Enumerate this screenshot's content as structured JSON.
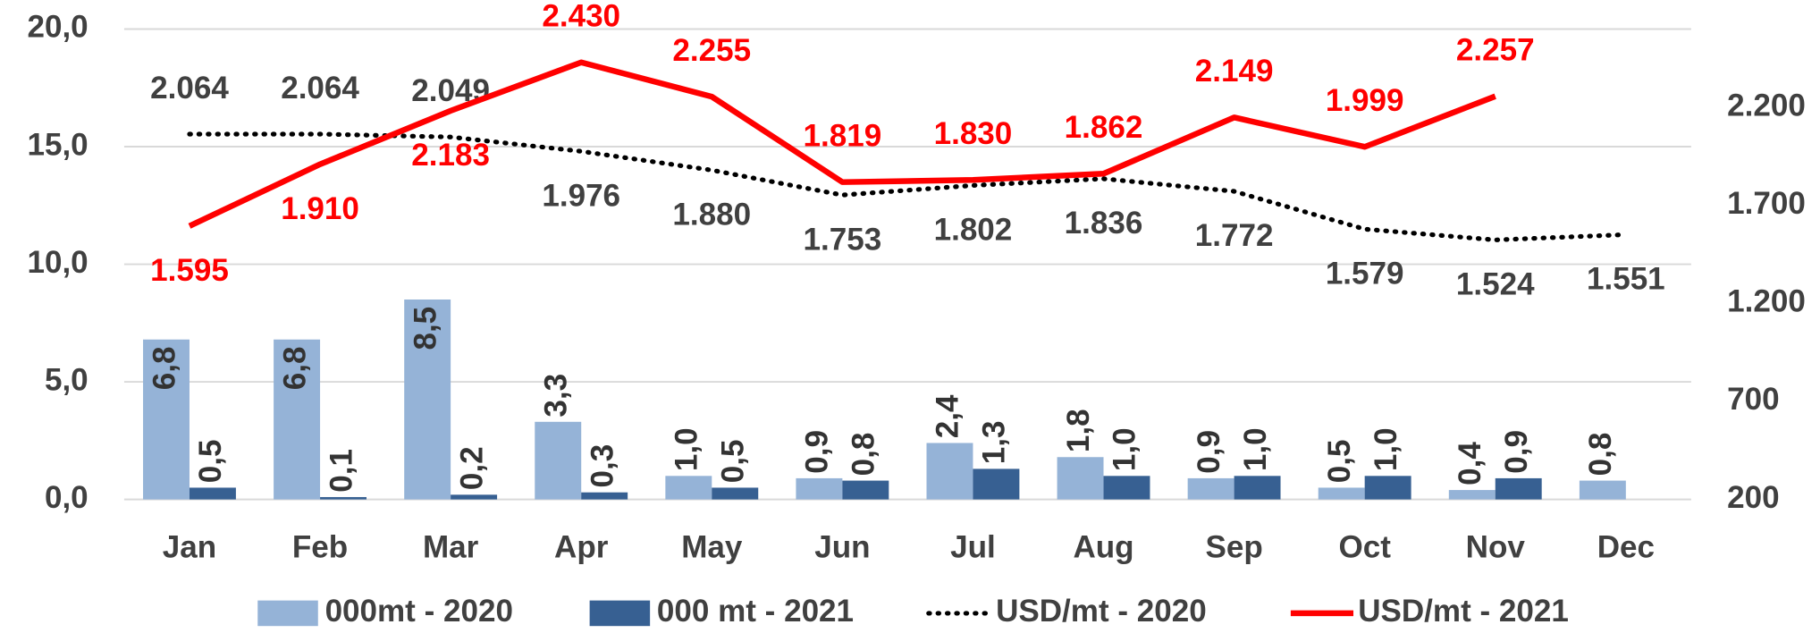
{
  "chart_data": {
    "type": "bar-line",
    "categories": [
      "Jan",
      "Feb",
      "Mar",
      "Apr",
      "May",
      "Jun",
      "Jul",
      "Aug",
      "Sep",
      "Oct",
      "Nov",
      "Dec"
    ],
    "series": [
      {
        "name": "000mt - 2020",
        "type": "bar",
        "color": "#95b3d7",
        "values": [
          6.8,
          6.8,
          8.5,
          3.3,
          1.0,
          0.9,
          2.4,
          1.8,
          0.9,
          0.5,
          0.4,
          0.8
        ],
        "value_labels": [
          "6,8",
          "6,8",
          "8,5",
          "3,3",
          "1,0",
          "0,9",
          "2,4",
          "1,8",
          "0,9",
          "0,5",
          "0,4",
          "0,8"
        ]
      },
      {
        "name": "000 mt - 2021",
        "type": "bar",
        "color": "#376092",
        "values": [
          0.5,
          0.1,
          0.2,
          0.3,
          0.5,
          0.8,
          1.3,
          1.0,
          1.0,
          1.0,
          0.9,
          null
        ],
        "value_labels": [
          "0,5",
          "0,1",
          "0,2",
          "0,3",
          "0,5",
          "0,8",
          "1,3",
          "1,0",
          "1,0",
          "1,0",
          "0,9",
          null
        ]
      },
      {
        "name": "USD/mt - 2020",
        "type": "line",
        "dash": "dotted",
        "color": "#000000",
        "axis": "y2",
        "values": [
          2064,
          2064,
          2049,
          1976,
          1880,
          1753,
          1802,
          1836,
          1772,
          1579,
          1524,
          1551
        ],
        "value_labels": [
          "2.064",
          "2.064",
          "2.049",
          "1.976",
          "1.880",
          "1.753",
          "1.802",
          "1.836",
          "1.772",
          "1.579",
          "1.524",
          "1.551"
        ]
      },
      {
        "name": "USD/mt - 2021",
        "type": "line",
        "color": "#ff0000",
        "axis": "y2",
        "values": [
          1595,
          1910,
          2183,
          2430,
          2255,
          1819,
          1830,
          1862,
          2149,
          1999,
          2257,
          null
        ],
        "value_labels": [
          "1.595",
          "1.910",
          "2.183",
          "2.430",
          "2.255",
          "1.819",
          "1.830",
          "1.862",
          "2.149",
          "1.999",
          "2.257",
          null
        ]
      }
    ],
    "ylim": [
      0,
      20
    ],
    "yticks": [
      {
        "value": 0,
        "label": "0,0"
      },
      {
        "value": 5,
        "label": "5,0"
      },
      {
        "value": 10,
        "label": "10,0"
      },
      {
        "value": 15,
        "label": "15,0"
      },
      {
        "value": 20,
        "label": "20,0"
      }
    ],
    "y2lim": [
      200,
      2600
    ],
    "y2ticks": [
      200,
      700,
      {
        "value": 1200,
        "label": "1.200"
      },
      {
        "value": 1700,
        "label": "1.700"
      },
      {
        "value": 2200,
        "label": "2.200"
      }
    ],
    "grid": true,
    "legend": "bottom"
  }
}
